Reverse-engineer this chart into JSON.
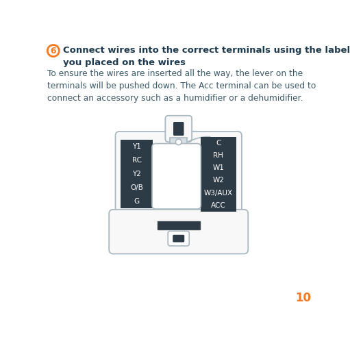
{
  "title_number": "6",
  "title_text": "Connect wires into the correct terminals using the labels\nyou placed on the wires",
  "body_text": "To ensure the wires are inserted all the way, the lever on the\nterminals will be pushed down. The Acc terminal can be used to\nconnect an accessory such as a humidifier or a dehumidifier.",
  "page_number": "10",
  "left_labels": [
    "Y1",
    "RC",
    "Y2",
    "O/B",
    "G"
  ],
  "right_labels": [
    "C",
    "RH",
    "W1",
    "W2",
    "W3/AUX",
    "ACC"
  ],
  "bg_color": "#ffffff",
  "circle_color": "#f47920",
  "circle_outline": "#f47920",
  "title_color": "#1e3a4f",
  "body_color": "#3d5a6b",
  "page_color": "#f47920",
  "terminal_bg": "#2d3b47",
  "terminal_text": "#ffffff",
  "device_border": "#aab8c0",
  "device_fill": "#f8f8f8",
  "connector_fill": "#d8dfe3",
  "center_panel_border": "#aab8c0"
}
